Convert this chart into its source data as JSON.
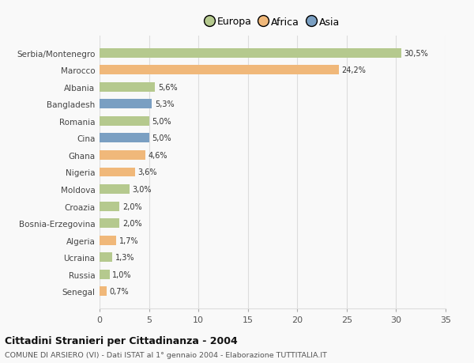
{
  "categories": [
    "Serbia/Montenegro",
    "Marocco",
    "Albania",
    "Bangladesh",
    "Romania",
    "Cina",
    "Ghana",
    "Nigeria",
    "Moldova",
    "Croazia",
    "Bosnia-Erzegovina",
    "Algeria",
    "Ucraina",
    "Russia",
    "Senegal"
  ],
  "values": [
    30.5,
    24.2,
    5.6,
    5.3,
    5.0,
    5.0,
    4.6,
    3.6,
    3.0,
    2.0,
    2.0,
    1.7,
    1.3,
    1.0,
    0.7
  ],
  "labels": [
    "30,5%",
    "24,2%",
    "5,6%",
    "5,3%",
    "5,0%",
    "5,0%",
    "4,6%",
    "3,6%",
    "3,0%",
    "2,0%",
    "2,0%",
    "1,7%",
    "1,3%",
    "1,0%",
    "0,7%"
  ],
  "colors": [
    "#b5c98e",
    "#f0b87a",
    "#b5c98e",
    "#7a9fc2",
    "#b5c98e",
    "#7a9fc2",
    "#f0b87a",
    "#f0b87a",
    "#b5c98e",
    "#b5c98e",
    "#b5c98e",
    "#f0b87a",
    "#b5c98e",
    "#b5c98e",
    "#f0b87a"
  ],
  "legend_labels": [
    "Europa",
    "Africa",
    "Asia"
  ],
  "legend_colors": [
    "#b5c98e",
    "#f0b87a",
    "#7a9fc2"
  ],
  "xlim": [
    0,
    35
  ],
  "xticks": [
    0,
    5,
    10,
    15,
    20,
    25,
    30,
    35
  ],
  "title": "Cittadini Stranieri per Cittadinanza - 2004",
  "subtitle": "COMUNE DI ARSIERO (VI) - Dati ISTAT al 1° gennaio 2004 - Elaborazione TUTTITALIA.IT",
  "background_color": "#f9f9f9",
  "grid_color": "#dddddd",
  "bar_height": 0.55
}
